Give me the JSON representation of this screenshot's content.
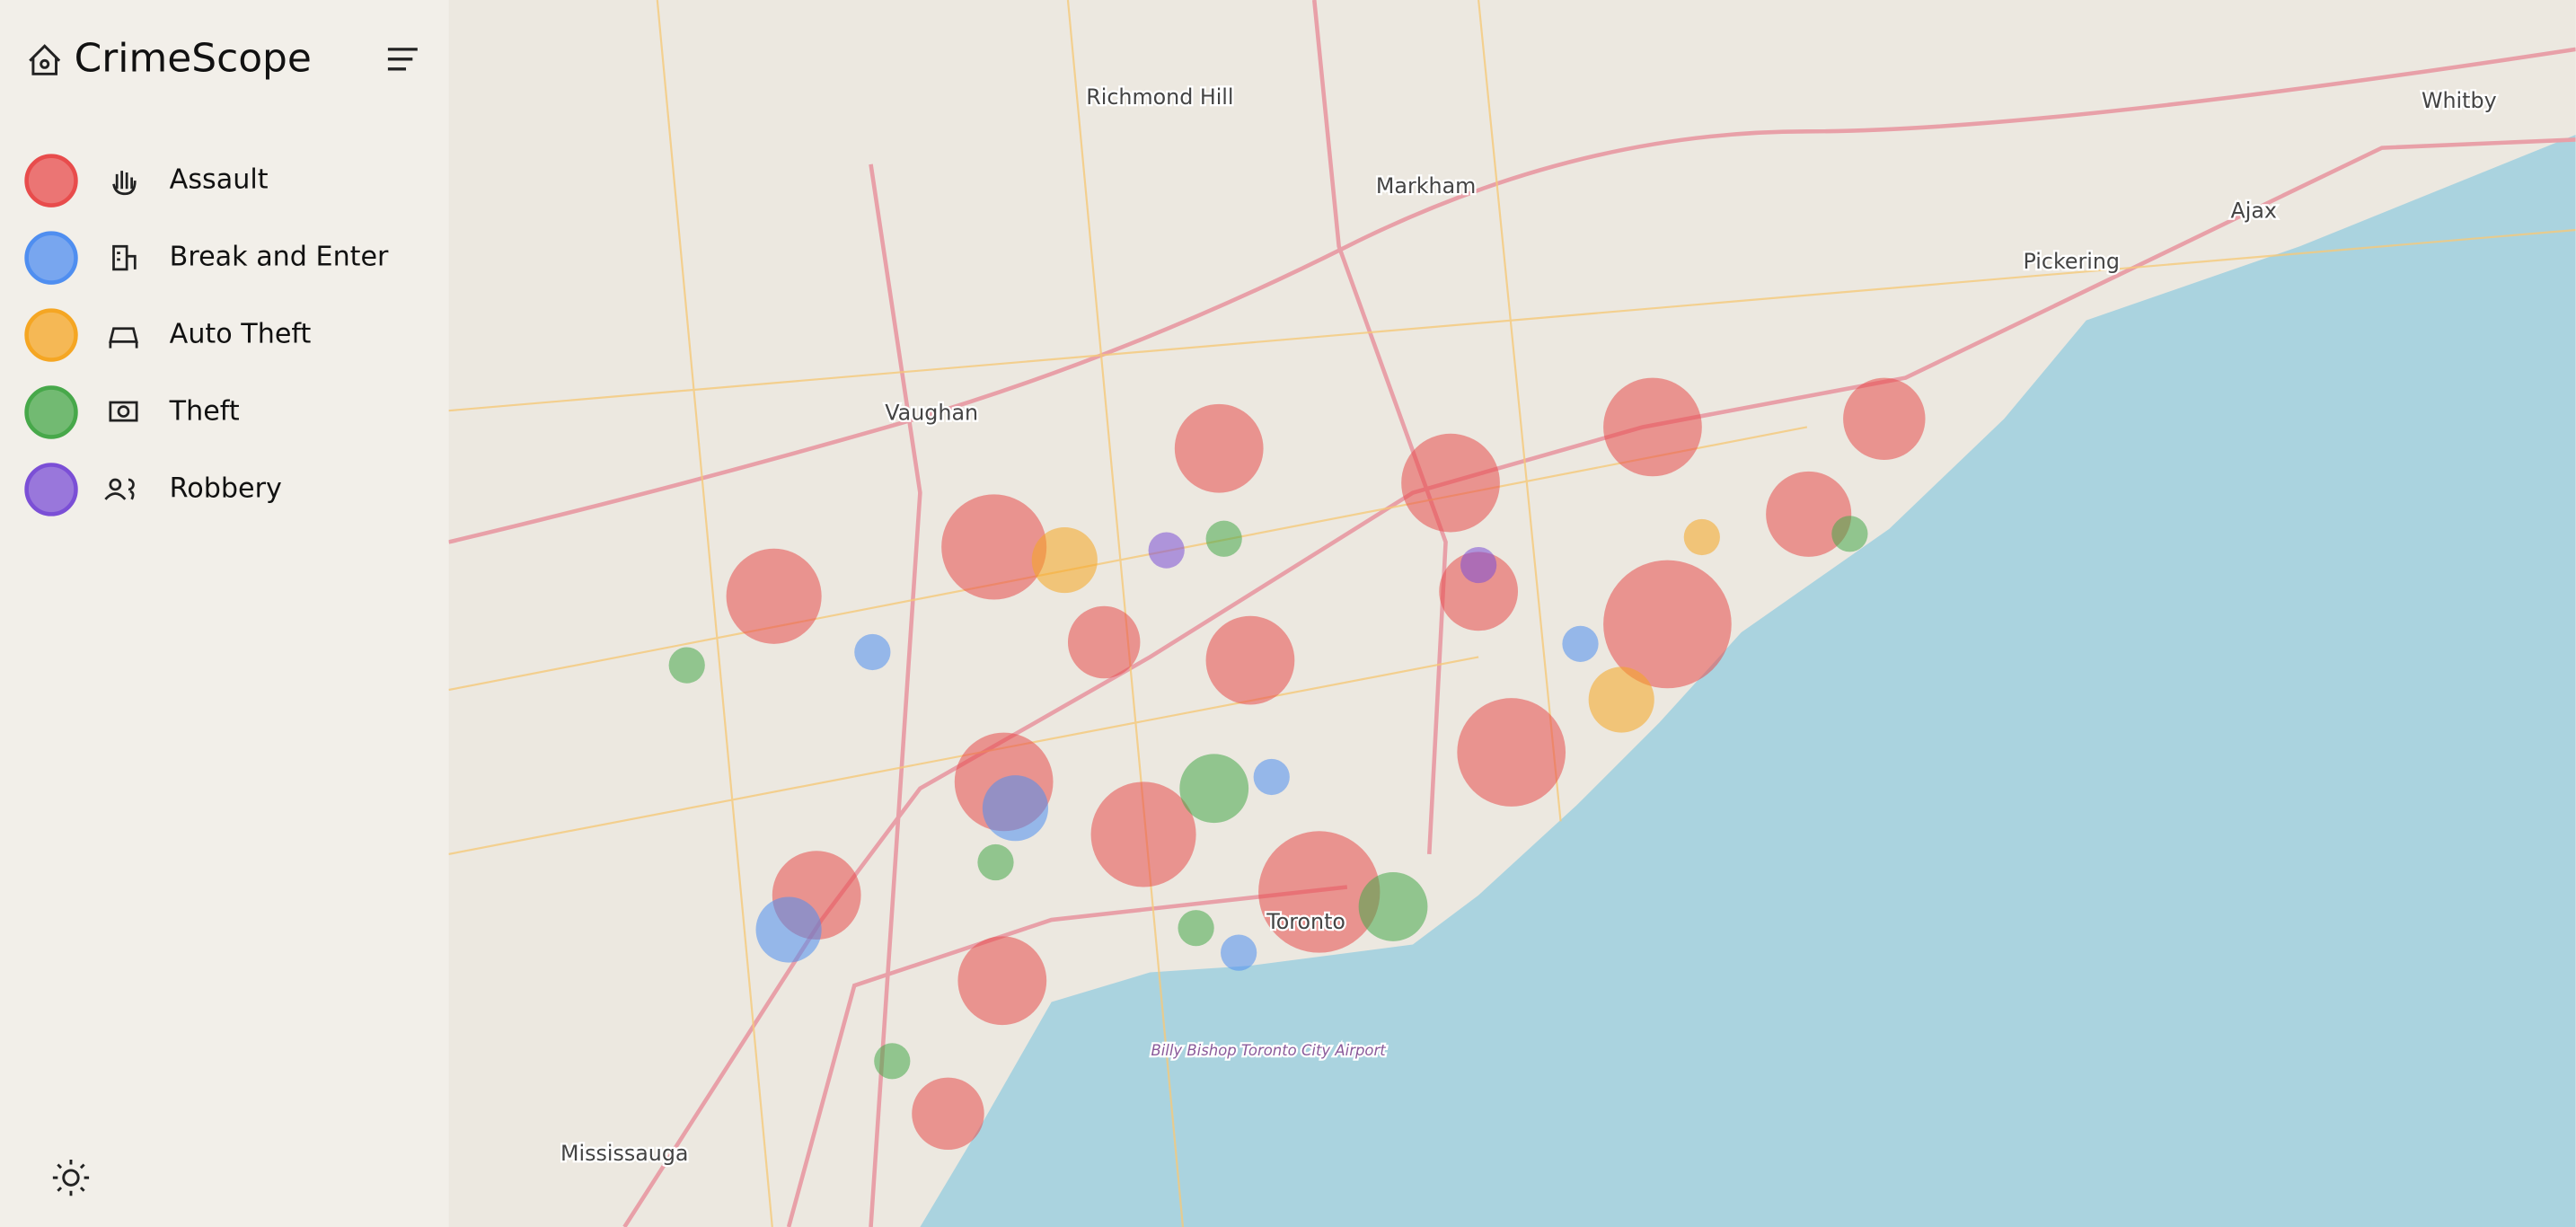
{
  "app": {
    "title": "CrimeScope"
  },
  "legend": [
    {
      "label": "Assault",
      "color": "#e84c4c"
    },
    {
      "label": "Break and Enter",
      "color": "#4f8ef0"
    },
    {
      "label": "Auto Theft",
      "color": "#f5a623"
    },
    {
      "label": "Theft",
      "color": "#47a84a"
    },
    {
      "label": "Robbery",
      "color": "#7b4fd6"
    }
  ],
  "map": {
    "labels": [
      "Richmond Hill",
      "Markham",
      "Vaughan",
      "Toronto",
      "Mississauga",
      "Pickering",
      "Ajax",
      "Whitby",
      "Billy Bishop Toronto City Airport"
    ]
  }
}
